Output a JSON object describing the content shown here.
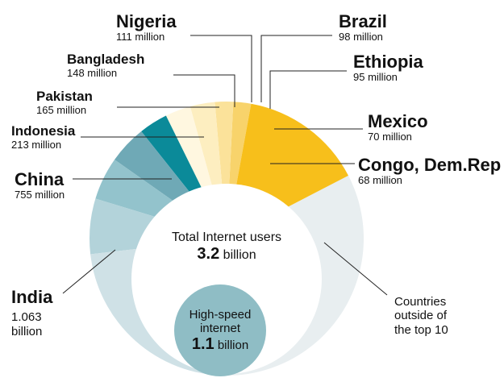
{
  "chart_data": {
    "type": "pie",
    "slices": [
      {
        "name": "India",
        "value_text": "1.063",
        "value_unit": "billion",
        "value": 1063,
        "color": "#e8eef0"
      },
      {
        "name": "China",
        "value_text": "755 million",
        "value": 755,
        "color": "#cfe1e6"
      },
      {
        "name": "Indonesia",
        "value_text": "213 million",
        "value": 213,
        "color": "#b3d3da"
      },
      {
        "name": "Pakistan",
        "value_text": "165 million",
        "value": 165,
        "color": "#93c3cc"
      },
      {
        "name": "Bangladesh",
        "value_text": "148 million",
        "value": 148,
        "color": "#6fa9b6"
      },
      {
        "name": "Nigeria",
        "value_text": "111 million",
        "value": 111,
        "color": "#0b8a99"
      },
      {
        "name": "Brazil",
        "value_text": "98 million",
        "value": 98,
        "color": "#fff7e0"
      },
      {
        "name": "Ethiopia",
        "value_text": "95 million",
        "value": 95,
        "color": "#fdeec0"
      },
      {
        "name": "Mexico",
        "value_text": "70 million",
        "value": 70,
        "color": "#fbe29a"
      },
      {
        "name": "Congo, Dem.Rep",
        "value_text": "68 million",
        "value": 68,
        "color": "#f8d36b"
      },
      {
        "name": "Countries outside of the top 10",
        "value": 474,
        "color": "#f7bf1b"
      }
    ],
    "center": {
      "total_label": "Total Internet users",
      "total_value": "3.2",
      "total_unit": "billion",
      "highspeed_label": "High-speed internet",
      "highspeed_value": "1.1",
      "highspeed_unit": "billion"
    }
  },
  "labels": {
    "nigeria": {
      "name": "Nigeria",
      "val": "111 million"
    },
    "brazil": {
      "name": "Brazil",
      "val": "98 million"
    },
    "bangladesh": {
      "name": "Bangladesh",
      "val": "148 million"
    },
    "ethiopia": {
      "name": "Ethiopia",
      "val": "95 million"
    },
    "pakistan": {
      "name": "Pakistan",
      "val": "165 million"
    },
    "mexico": {
      "name": "Mexico",
      "val": "70 million"
    },
    "indonesia": {
      "name": "Indonesia",
      "val": "213 million"
    },
    "congo": {
      "name": "Congo, Dem.Rep",
      "val": "68 million"
    },
    "china": {
      "name": "China",
      "val": "755 million"
    },
    "india": {
      "name": "India",
      "val1": "1.063",
      "val2": "billion"
    },
    "outside": {
      "line1": "Countries",
      "line2": "outside of",
      "line3": "the top 10"
    }
  }
}
